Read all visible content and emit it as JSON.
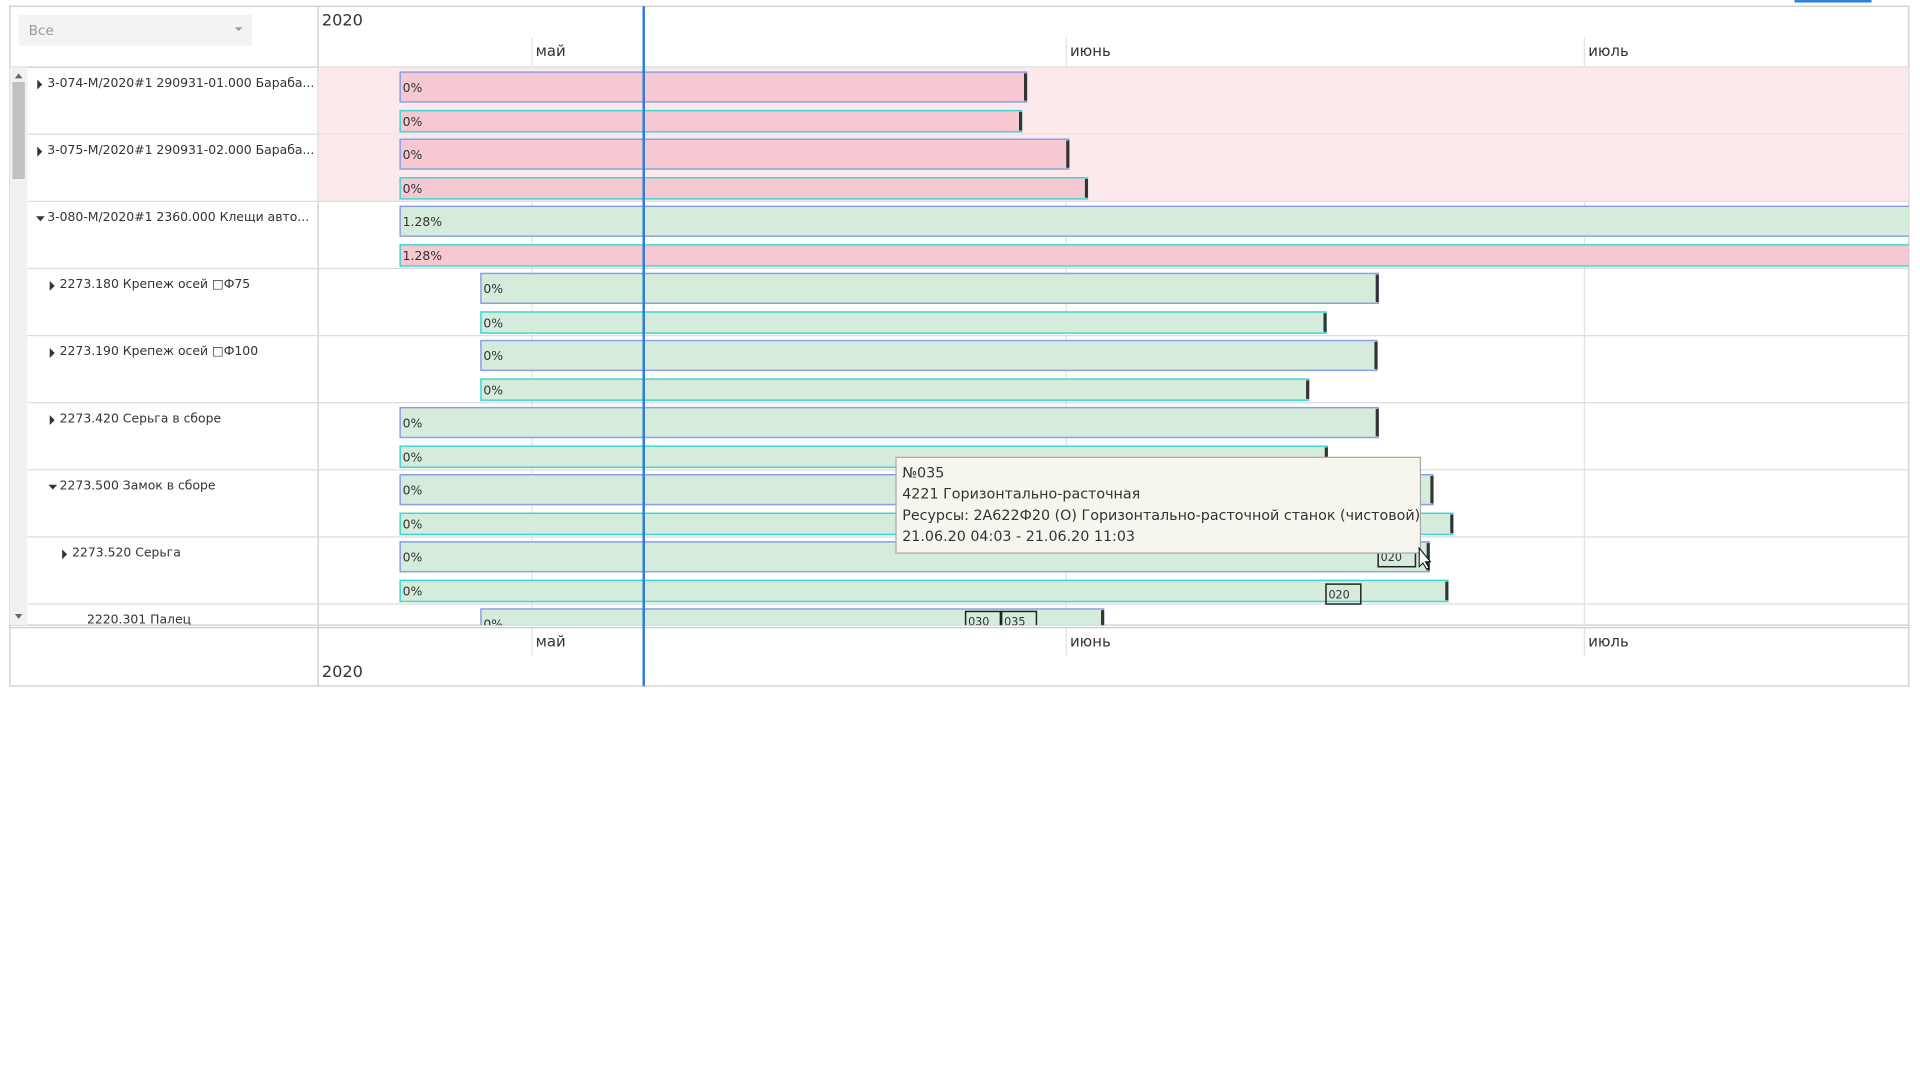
{
  "filter": "Все",
  "timeline": {
    "year": "2020",
    "months": [
      "май",
      "июнь",
      "июль"
    ]
  },
  "rows": [
    {
      "label": "3-074-М/2020#1 290931-01.000 Бараба...",
      "bars": [
        "0%",
        "0%"
      ]
    },
    {
      "label": "3-075-М/2020#1 290931-02.000 Бараба...",
      "bars": [
        "0%",
        "0%"
      ]
    },
    {
      "label": "3-080-М/2020#1 2360.000 Клещи авто...",
      "bars": [
        "1.28%",
        "1.28%"
      ]
    },
    {
      "label": "2273.180 Крепеж осей □Ф75",
      "bars": [
        "0%",
        "0%"
      ]
    },
    {
      "label": "2273.190 Крепеж осей □Ф100",
      "bars": [
        "0%",
        "0%"
      ]
    },
    {
      "label": "2273.420 Серьга в сборе",
      "bars": [
        "0%",
        "0%"
      ]
    },
    {
      "label": "2273.500 Замок в сборе",
      "bars": [
        "0%",
        "0%"
      ]
    },
    {
      "label": "2273.520 Серьга",
      "bars": [
        "0%",
        "0%"
      ],
      "ops": [
        "020",
        "020"
      ]
    },
    {
      "label": "2220.301 Палец",
      "bars": [
        "0%"
      ],
      "ops": [
        "030",
        "035"
      ]
    }
  ],
  "tooltip": {
    "lines": [
      "№035",
      "4221 Горизонтально-расточная",
      "Ресурсы: 2А622Ф20 (О) Горизонтально-расточной станок (чистовой)",
      "21.06.20 04:03 - 21.06.20 11:03"
    ]
  }
}
